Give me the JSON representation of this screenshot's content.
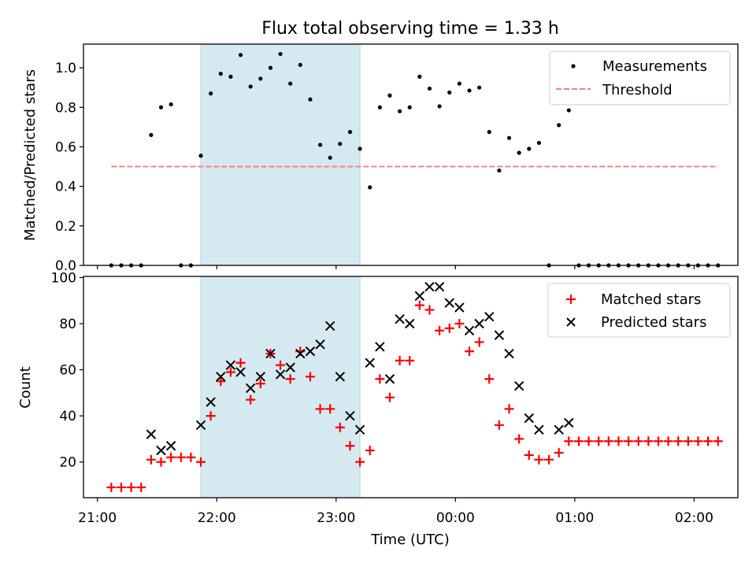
{
  "chart_data": [
    {
      "type": "scatter",
      "title": "Flux total observing time = 1.33 h",
      "xlabel": "",
      "ylabel": "Matched/Predicted stars",
      "xlim": [
        "20:53",
        "02:22"
      ],
      "ylim": [
        0,
        1.12
      ],
      "yticks": [
        0.0,
        0.2,
        0.4,
        0.6,
        0.8,
        1.0
      ],
      "ytick_labels": [
        "0.0",
        "0.2",
        "0.4",
        "0.6",
        "0.8",
        "1.0"
      ],
      "highlight_span": {
        "x": [
          "21:52",
          "23:12"
        ],
        "color": "#d4eaf0"
      },
      "legend": {
        "position": "top-right",
        "entries": [
          "Measurements",
          "Threshold"
        ]
      },
      "series": [
        {
          "name": "Measurements",
          "style": "dot",
          "color": "#000000",
          "points": [
            [
              "21:07",
              0
            ],
            [
              "21:12",
              0
            ],
            [
              "21:17",
              0
            ],
            [
              "21:22",
              0
            ],
            [
              "21:27",
              0.66
            ],
            [
              "21:32",
              0.8
            ],
            [
              "21:37",
              0.815
            ],
            [
              "21:42",
              0
            ],
            [
              "21:47",
              0
            ],
            [
              "21:52",
              0.555
            ],
            [
              "21:57",
              0.87
            ],
            [
              "22:02",
              0.97
            ],
            [
              "22:07",
              0.955
            ],
            [
              "22:12",
              1.065
            ],
            [
              "22:17",
              0.905
            ],
            [
              "22:22",
              0.945
            ],
            [
              "22:27",
              1.0
            ],
            [
              "22:32",
              1.07
            ],
            [
              "22:37",
              0.92
            ],
            [
              "22:42",
              1.015
            ],
            [
              "22:47",
              0.84
            ],
            [
              "22:52",
              0.61
            ],
            [
              "22:57",
              0.545
            ],
            [
              "23:02",
              0.615
            ],
            [
              "23:07",
              0.675
            ],
            [
              "23:12",
              0.59
            ],
            [
              "23:17",
              0.395
            ],
            [
              "23:22",
              0.8
            ],
            [
              "23:27",
              0.86
            ],
            [
              "23:32",
              0.78
            ],
            [
              "23:37",
              0.8
            ],
            [
              "23:42",
              0.955
            ],
            [
              "23:47",
              0.895
            ],
            [
              "23:52",
              0.805
            ],
            [
              "23:57",
              0.875
            ],
            [
              "00:02",
              0.92
            ],
            [
              "00:07",
              0.885
            ],
            [
              "00:12",
              0.9
            ],
            [
              "00:17",
              0.675
            ],
            [
              "00:22",
              0.48
            ],
            [
              "00:27",
              0.645
            ],
            [
              "00:32",
              0.57
            ],
            [
              "00:37",
              0.59
            ],
            [
              "00:42",
              0.62
            ],
            [
              "00:47",
              0
            ],
            [
              "00:52",
              0.71
            ],
            [
              "00:57",
              0.785
            ],
            [
              "01:02",
              0
            ],
            [
              "01:07",
              0
            ],
            [
              "01:12",
              0
            ],
            [
              "01:17",
              0
            ],
            [
              "01:22",
              0
            ],
            [
              "01:27",
              0
            ],
            [
              "01:32",
              0
            ],
            [
              "01:37",
              0
            ],
            [
              "01:42",
              0
            ],
            [
              "01:47",
              0
            ],
            [
              "01:52",
              0
            ],
            [
              "01:57",
              0
            ],
            [
              "02:02",
              0
            ],
            [
              "02:07",
              0
            ],
            [
              "02:12",
              0
            ]
          ]
        },
        {
          "name": "Threshold",
          "style": "dashed-line",
          "color": "#ff7f7f",
          "points": [
            [
              "21:07",
              0.5
            ],
            [
              "02:12",
              0.5
            ]
          ]
        }
      ]
    },
    {
      "type": "scatter",
      "title": "",
      "xlabel": "Time (UTC)",
      "ylabel": "Count",
      "xlim": [
        "20:53",
        "02:22"
      ],
      "ylim": [
        4.5,
        100.5
      ],
      "yticks": [
        20,
        40,
        60,
        80,
        100
      ],
      "ytick_labels": [
        "20",
        "40",
        "60",
        "80",
        "100"
      ],
      "xticks": [
        "21:00",
        "22:00",
        "23:00",
        "00:00",
        "01:00",
        "02:00"
      ],
      "xtick_labels": [
        "21:00",
        "22:00",
        "23:00",
        "00:00",
        "01:00",
        "02:00"
      ],
      "highlight_span": {
        "x": [
          "21:52",
          "23:12"
        ],
        "color": "#d4eaf0"
      },
      "legend": {
        "position": "top-right",
        "entries": [
          "Matched stars",
          "Predicted stars"
        ]
      },
      "series": [
        {
          "name": "Matched stars",
          "style": "plus",
          "color": "#ff0000",
          "points": [
            [
              "21:07",
              9
            ],
            [
              "21:12",
              9
            ],
            [
              "21:17",
              9
            ],
            [
              "21:22",
              9
            ],
            [
              "21:27",
              21
            ],
            [
              "21:32",
              20
            ],
            [
              "21:37",
              22
            ],
            [
              "21:42",
              22
            ],
            [
              "21:47",
              22
            ],
            [
              "21:52",
              20
            ],
            [
              "21:57",
              40
            ],
            [
              "22:02",
              55
            ],
            [
              "22:07",
              59
            ],
            [
              "22:12",
              63
            ],
            [
              "22:17",
              47
            ],
            [
              "22:22",
              54
            ],
            [
              "22:27",
              67
            ],
            [
              "22:32",
              62
            ],
            [
              "22:37",
              56
            ],
            [
              "22:42",
              68
            ],
            [
              "22:47",
              57
            ],
            [
              "22:52",
              43
            ],
            [
              "22:57",
              43
            ],
            [
              "23:02",
              35
            ],
            [
              "23:07",
              27
            ],
            [
              "23:12",
              20
            ],
            [
              "23:17",
              25
            ],
            [
              "23:22",
              56
            ],
            [
              "23:27",
              48
            ],
            [
              "23:32",
              64
            ],
            [
              "23:37",
              64
            ],
            [
              "23:42",
              88
            ],
            [
              "23:47",
              86
            ],
            [
              "23:52",
              77
            ],
            [
              "23:57",
              78
            ],
            [
              "00:02",
              80
            ],
            [
              "00:07",
              68
            ],
            [
              "00:12",
              72
            ],
            [
              "00:17",
              56
            ],
            [
              "00:22",
              36
            ],
            [
              "00:27",
              43
            ],
            [
              "00:32",
              30
            ],
            [
              "00:37",
              23
            ],
            [
              "00:42",
              21
            ],
            [
              "00:47",
              21
            ],
            [
              "00:52",
              24
            ],
            [
              "00:57",
              29
            ],
            [
              "01:02",
              29
            ],
            [
              "01:07",
              29
            ],
            [
              "01:12",
              29
            ],
            [
              "01:17",
              29
            ],
            [
              "01:22",
              29
            ],
            [
              "01:27",
              29
            ],
            [
              "01:32",
              29
            ],
            [
              "01:37",
              29
            ],
            [
              "01:42",
              29
            ],
            [
              "01:47",
              29
            ],
            [
              "01:52",
              29
            ],
            [
              "01:57",
              29
            ],
            [
              "02:02",
              29
            ],
            [
              "02:07",
              29
            ],
            [
              "02:12",
              29
            ]
          ]
        },
        {
          "name": "Predicted stars",
          "style": "x",
          "color": "#000000",
          "points": [
            [
              "21:27",
              32
            ],
            [
              "21:32",
              25
            ],
            [
              "21:37",
              27
            ],
            [
              "21:52",
              36
            ],
            [
              "21:57",
              46
            ],
            [
              "22:02",
              57
            ],
            [
              "22:07",
              62
            ],
            [
              "22:12",
              59
            ],
            [
              "22:17",
              52
            ],
            [
              "22:22",
              57
            ],
            [
              "22:27",
              67
            ],
            [
              "22:32",
              58
            ],
            [
              "22:37",
              61
            ],
            [
              "22:42",
              67
            ],
            [
              "22:47",
              68
            ],
            [
              "22:52",
              71
            ],
            [
              "22:57",
              79
            ],
            [
              "23:02",
              57
            ],
            [
              "23:07",
              40
            ],
            [
              "23:12",
              34
            ],
            [
              "23:17",
              63
            ],
            [
              "23:22",
              70
            ],
            [
              "23:27",
              56
            ],
            [
              "23:32",
              82
            ],
            [
              "23:37",
              80
            ],
            [
              "23:42",
              92
            ],
            [
              "23:47",
              96
            ],
            [
              "23:52",
              96
            ],
            [
              "23:57",
              89
            ],
            [
              "00:02",
              87
            ],
            [
              "00:07",
              77
            ],
            [
              "00:12",
              80
            ],
            [
              "00:17",
              83
            ],
            [
              "00:22",
              75
            ],
            [
              "00:27",
              67
            ],
            [
              "00:32",
              53
            ],
            [
              "00:37",
              39
            ],
            [
              "00:42",
              34
            ],
            [
              "00:52",
              34
            ],
            [
              "00:57",
              37
            ]
          ]
        }
      ]
    }
  ]
}
